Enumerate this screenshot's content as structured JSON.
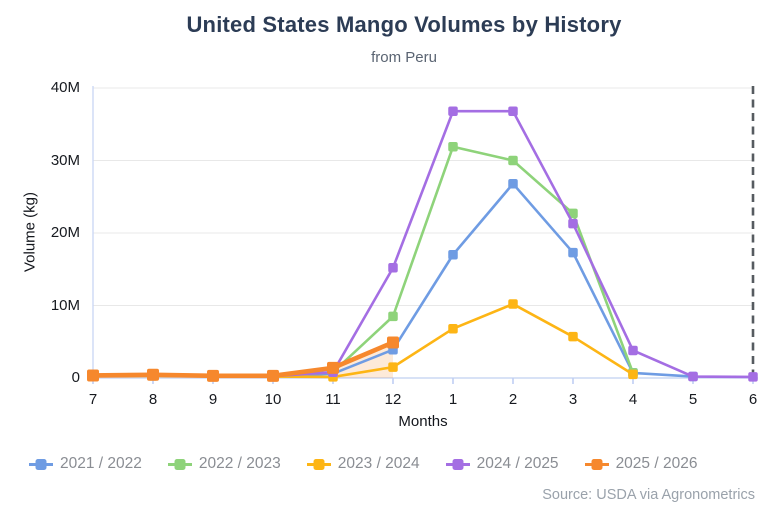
{
  "header": {
    "title": "United States Mango Volumes by History",
    "subtitle": "from Peru"
  },
  "footer": {
    "source": "Source: USDA via Agronometrics"
  },
  "chart_data": {
    "type": "line",
    "title": "United States Mango Volumes by History",
    "subtitle": "from Peru",
    "xlabel": "Months",
    "ylabel": "Volume (kg)",
    "unit": "kg",
    "value_scale": 1000000,
    "x_categories": [
      "7",
      "8",
      "9",
      "10",
      "11",
      "12",
      "1",
      "2",
      "3",
      "4",
      "5",
      "6"
    ],
    "y_ticks": [
      {
        "label": "0",
        "value_millions": 0
      },
      {
        "label": "10M",
        "value_millions": 10
      },
      {
        "label": "20M",
        "value_millions": 20
      },
      {
        "label": "30M",
        "value_millions": 30
      },
      {
        "label": "40M",
        "value_millions": 40
      }
    ],
    "ylim_millions": [
      0,
      40
    ],
    "grid": true,
    "legend_position": "bottom",
    "marker": "square",
    "series": [
      {
        "name": "2021 / 2022",
        "color": "#6f9ce3",
        "values_millions": [
          0.3,
          0.3,
          0.25,
          0.25,
          0.6,
          3.9,
          17.0,
          26.8,
          17.3,
          0.7,
          0.2,
          null
        ]
      },
      {
        "name": "2022 / 2023",
        "color": "#8ed37a",
        "values_millions": [
          0.3,
          0.4,
          0.3,
          0.25,
          0.8,
          8.5,
          31.9,
          30.0,
          22.7,
          0.7,
          null,
          null
        ]
      },
      {
        "name": "2023 / 2024",
        "color": "#fdb515",
        "values_millions": [
          0.25,
          0.3,
          0.25,
          0.2,
          0.15,
          1.5,
          6.8,
          10.2,
          5.7,
          0.5,
          null,
          null
        ]
      },
      {
        "name": "2024 / 2025",
        "color": "#a46ee3",
        "values_millions": [
          0.3,
          0.4,
          0.3,
          0.25,
          0.8,
          15.2,
          36.8,
          36.8,
          21.3,
          3.8,
          0.2,
          0.15
        ]
      },
      {
        "name": "2025 / 2026",
        "color": "#f6882d",
        "thick": true,
        "area_fill": true,
        "area_opacity": 0.18,
        "values_millions": [
          0.35,
          0.45,
          0.3,
          0.3,
          1.4,
          4.9,
          null,
          null,
          null,
          null,
          null,
          null
        ]
      }
    ],
    "annotations": [
      {
        "type": "dashed-vertical-line",
        "x_category": "6",
        "color": "#565b60"
      }
    ],
    "colors": {
      "grid": "#e8e8e8",
      "axis": "#ccd8f4",
      "tick": "#bfcef3",
      "title": "#2c3c55",
      "subtitle": "#5a6472",
      "legend_text": "#8a8d93",
      "source_text": "#9aa2ab"
    }
  }
}
